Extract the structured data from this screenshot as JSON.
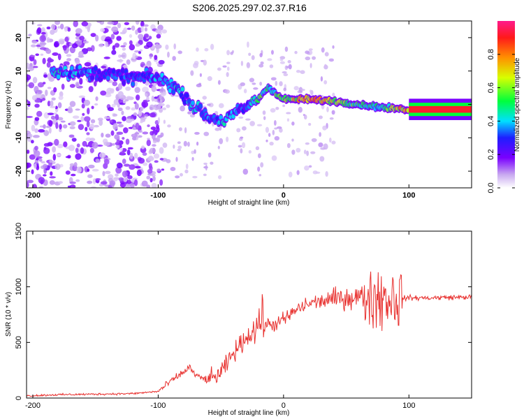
{
  "title": "S206.2025.297.02.37.R16",
  "chart_data": [
    {
      "type": "heatmap",
      "name": "spectrogram",
      "xlabel": "Height of straight line (km)",
      "ylabel": "Frequency (Hz)",
      "xlim": [
        -205,
        150
      ],
      "ylim": [
        -25,
        25
      ],
      "xticks": [
        -200,
        -100,
        0,
        100
      ],
      "yticks": [
        -20,
        -10,
        0,
        10,
        20
      ],
      "colorbar": {
        "label": "Normalized spectral amplitude",
        "range": [
          0,
          1
        ],
        "ticks": [
          0.0,
          0.2,
          0.4,
          0.6,
          0.8
        ],
        "tick_labels": [
          "0.0",
          "0.2",
          "0.4",
          "0.6",
          "0.8"
        ]
      },
      "ridge": [
        {
          "x": -180,
          "y": 10,
          "a": 0.4
        },
        {
          "x": -140,
          "y": 9,
          "a": 0.3
        },
        {
          "x": -120,
          "y": 8,
          "a": 0.3
        },
        {
          "x": -100,
          "y": 8,
          "a": 0.35
        },
        {
          "x": -90,
          "y": 6,
          "a": 0.4
        },
        {
          "x": -80,
          "y": 3,
          "a": 0.35
        },
        {
          "x": -70,
          "y": -1,
          "a": 0.4
        },
        {
          "x": -60,
          "y": -4,
          "a": 0.35
        },
        {
          "x": -50,
          "y": -5,
          "a": 0.4
        },
        {
          "x": -40,
          "y": -3,
          "a": 0.35
        },
        {
          "x": -30,
          "y": -1,
          "a": 0.3
        },
        {
          "x": -20,
          "y": 2,
          "a": 0.5
        },
        {
          "x": -12,
          "y": 5,
          "a": 0.5
        },
        {
          "x": 0,
          "y": 1.5,
          "a": 0.55
        },
        {
          "x": 20,
          "y": 1.5,
          "a": 0.8
        },
        {
          "x": 40,
          "y": 1,
          "a": 0.65
        },
        {
          "x": 60,
          "y": 0,
          "a": 0.5
        },
        {
          "x": 80,
          "y": -1,
          "a": 0.45
        },
        {
          "x": 100,
          "y": -1.5,
          "a": 0.85
        },
        {
          "x": 150,
          "y": -1.5,
          "a": 0.85
        }
      ]
    },
    {
      "type": "line",
      "name": "snr",
      "xlabel": "Height of straight line (km)",
      "ylabel": "SNR (10 * v/v)",
      "xlim": [
        -205,
        150
      ],
      "ylim": [
        0,
        1500
      ],
      "xticks": [
        -200,
        -100,
        0,
        100
      ],
      "yticks": [
        0,
        500,
        1000,
        1500
      ],
      "color": "#e8312f",
      "series": [
        {
          "name": "SNR",
          "points": [
            [
              -205,
              20
            ],
            [
              -180,
              30
            ],
            [
              -150,
              35
            ],
            [
              -120,
              40
            ],
            [
              -100,
              60
            ],
            [
              -90,
              150
            ],
            [
              -80,
              230
            ],
            [
              -75,
              280
            ],
            [
              -70,
              200
            ],
            [
              -60,
              160
            ],
            [
              -50,
              220
            ],
            [
              -40,
              400
            ],
            [
              -30,
              540
            ],
            [
              -22,
              620
            ],
            [
              -20,
              700
            ],
            [
              -10,
              650
            ],
            [
              0,
              700
            ],
            [
              10,
              790
            ],
            [
              20,
              850
            ],
            [
              30,
              870
            ],
            [
              40,
              890
            ],
            [
              50,
              900
            ],
            [
              60,
              910
            ],
            [
              70,
              920
            ],
            [
              80,
              910
            ],
            [
              90,
              900
            ],
            [
              100,
              900
            ],
            [
              110,
              900
            ],
            [
              120,
              900
            ],
            [
              130,
              905
            ],
            [
              140,
              905
            ],
            [
              150,
              910
            ]
          ]
        }
      ]
    }
  ]
}
